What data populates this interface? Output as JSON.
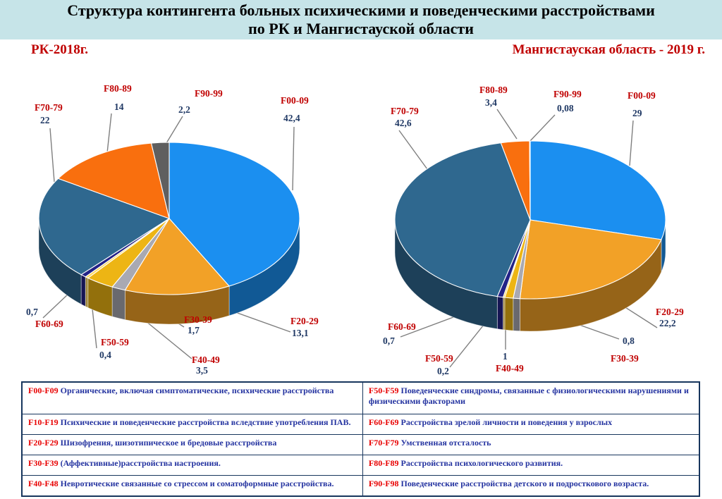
{
  "header": {
    "title_line1": "Структура контингента больных психическими и поведенческими расстройствами",
    "title_line2": "по РК и Мангистауской области"
  },
  "colors": {
    "header_bg": "#c6e4e8",
    "subtitle": "#c00000",
    "label_code": "#c00000",
    "label_value": "#1f3864",
    "leader_line": "#7f7f7f",
    "table_border": "#17365d",
    "table_code": "#e80000",
    "table_text": "#2433a0"
  },
  "chart_data": [
    {
      "type": "pie",
      "title": "РК-2018г.",
      "style": "3d-pie",
      "legend_position": "none",
      "categories": [
        "F00-09",
        "F20-29",
        "F30-39",
        "F40-49",
        "F50-59",
        "F60-69",
        "F70-79",
        "F80-89",
        "F90-99"
      ],
      "values": [
        42.4,
        13.1,
        1.7,
        3.5,
        0.4,
        0.7,
        22,
        14,
        2.2
      ],
      "display_values": [
        "42,4",
        "13,1",
        "1,7",
        "3,5",
        "0,4",
        "0,7",
        "22",
        "14",
        "2,2"
      ],
      "colors": [
        "#1b8ff0",
        "#f2a127",
        "#a9a9b2",
        "#edb514",
        "#ffd95e",
        "#232287",
        "#2f688f",
        "#f96f0e",
        "#5f5f5f"
      ]
    },
    {
      "type": "pie",
      "title": "Мангистауская область - 2019 г.",
      "style": "3d-pie",
      "legend_position": "none",
      "categories": [
        "F00-09",
        "F20-29",
        "F30-39",
        "F40-49",
        "F50-59",
        "F60-69",
        "F70-79",
        "F80-89",
        "F90-99"
      ],
      "values": [
        29,
        22.2,
        0.8,
        1,
        0.2,
        0.7,
        42.6,
        3.4,
        0.08
      ],
      "display_values": [
        "29",
        "22,2",
        "0,8",
        "1",
        "0,2",
        "0,7",
        "42,6",
        "3,4",
        "0,08"
      ],
      "colors": [
        "#1b8ff0",
        "#f2a127",
        "#a9a9b2",
        "#edb514",
        "#ffd95e",
        "#232287",
        "#2f688f",
        "#f96f0e",
        "#5f5f5f"
      ]
    }
  ],
  "legend_table": {
    "rows": [
      {
        "left": {
          "code": "F00-F09",
          "text": "Органические, включая симптоматические, психические расстройства"
        },
        "right": {
          "code": "F50-F59",
          "text": "Поведенческие синдромы, связанные с физиологическими нарушениями и физическими факторами"
        }
      },
      {
        "left": {
          "code": "F10-F19",
          "text": "Психические и поведенческие расстройства вследствие употребления ПАВ."
        },
        "right": {
          "code": "F60-F69",
          "text": "Расстройства зрелой личности и поведения у взрослых"
        }
      },
      {
        "left": {
          "code": "F20-F29",
          "text": "Шизофрения, шизотипическое и бредовые расстройства"
        },
        "right": {
          "code": "F70-F79",
          "text": "Умственная отсталость"
        }
      },
      {
        "left": {
          "code": "F30-F39",
          "text": "(Аффективные)расстройства настроения."
        },
        "right": {
          "code": "F80-F89",
          "text": "Расстройства психологического развития."
        }
      },
      {
        "left": {
          "code": "F40-F48",
          "text": "Невротические связанные со стрессом и соматоформные расстройства."
        },
        "right": {
          "code": "F90-F98",
          "text": "Поведенческие расстройства детского и подросткового возраста."
        }
      }
    ]
  }
}
